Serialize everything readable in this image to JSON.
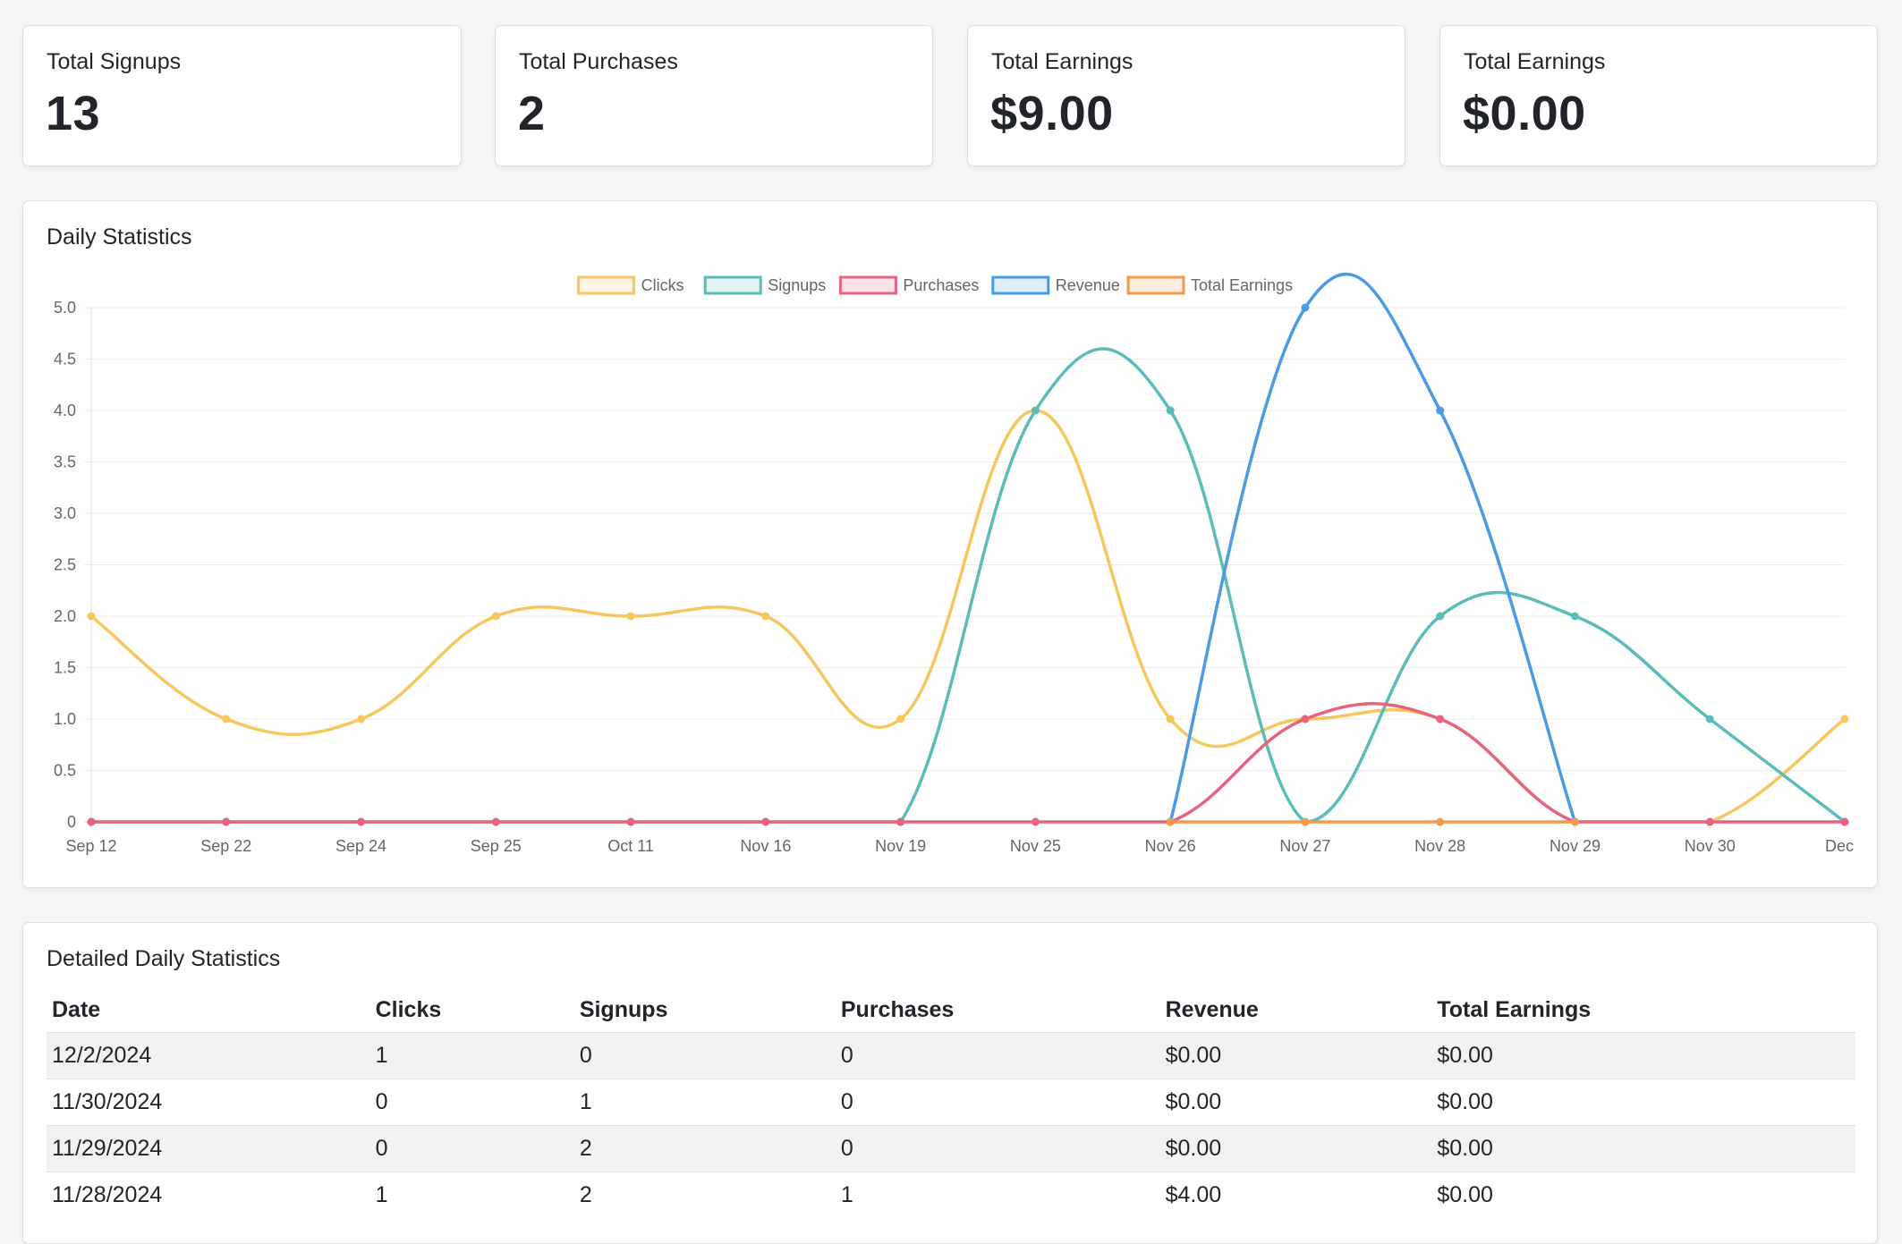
{
  "stats": [
    {
      "title": "Total Signups",
      "value": "13"
    },
    {
      "title": "Total Purchases",
      "value": "2"
    },
    {
      "title": "Total Earnings",
      "value": "$9.00"
    },
    {
      "title": "Total Earnings",
      "value": "$0.00"
    }
  ],
  "chart_section": {
    "title": "Daily Statistics"
  },
  "chart_data": {
    "type": "line",
    "title": "",
    "xlabel": "",
    "ylabel": "",
    "ylim": [
      0,
      5
    ],
    "yticks": [
      "0",
      "0.5",
      "1.0",
      "1.5",
      "2.0",
      "2.5",
      "3.0",
      "3.5",
      "4.0",
      "4.5",
      "5.0"
    ],
    "categories": [
      "Sep 12",
      "Sep 22",
      "Sep 24",
      "Sep 25",
      "Oct 11",
      "Nov 16",
      "Nov 19",
      "Nov 25",
      "Nov 26",
      "Nov 27",
      "Nov 28",
      "Nov 29",
      "Nov 30",
      "Dec"
    ],
    "grid": true,
    "legend_position": "top",
    "series": [
      {
        "name": "Clicks",
        "color": "#f5c75c",
        "values": [
          2,
          1,
          1,
          2,
          2,
          2,
          1,
          4,
          1,
          1,
          1,
          0,
          0,
          1
        ]
      },
      {
        "name": "Signups",
        "color": "#5bbcb8",
        "values": [
          0,
          0,
          0,
          0,
          0,
          0,
          0,
          4,
          4,
          0,
          2,
          2,
          1,
          0
        ]
      },
      {
        "name": "Purchases",
        "color": "#e8637f",
        "values": [
          0,
          0,
          0,
          0,
          0,
          0,
          0,
          0,
          0,
          1,
          1,
          0,
          0,
          0
        ]
      },
      {
        "name": "Revenue",
        "color": "#4a9ae4",
        "values": [
          null,
          null,
          null,
          null,
          null,
          null,
          null,
          null,
          0,
          5,
          4,
          0,
          null,
          null
        ]
      },
      {
        "name": "Total Earnings",
        "color": "#f39a4b",
        "values": [
          null,
          null,
          null,
          null,
          null,
          null,
          null,
          null,
          0,
          0,
          0,
          0,
          null,
          null
        ]
      }
    ]
  },
  "table_section": {
    "title": "Detailed Daily Statistics",
    "headers": [
      "Date",
      "Clicks",
      "Signups",
      "Purchases",
      "Revenue",
      "Total Earnings"
    ],
    "rows": [
      [
        "12/2/2024",
        "1",
        "0",
        "0",
        "$0.00",
        "$0.00"
      ],
      [
        "11/30/2024",
        "0",
        "1",
        "0",
        "$0.00",
        "$0.00"
      ],
      [
        "11/29/2024",
        "0",
        "2",
        "0",
        "$0.00",
        "$0.00"
      ],
      [
        "11/28/2024",
        "1",
        "2",
        "1",
        "$4.00",
        "$0.00"
      ]
    ]
  }
}
